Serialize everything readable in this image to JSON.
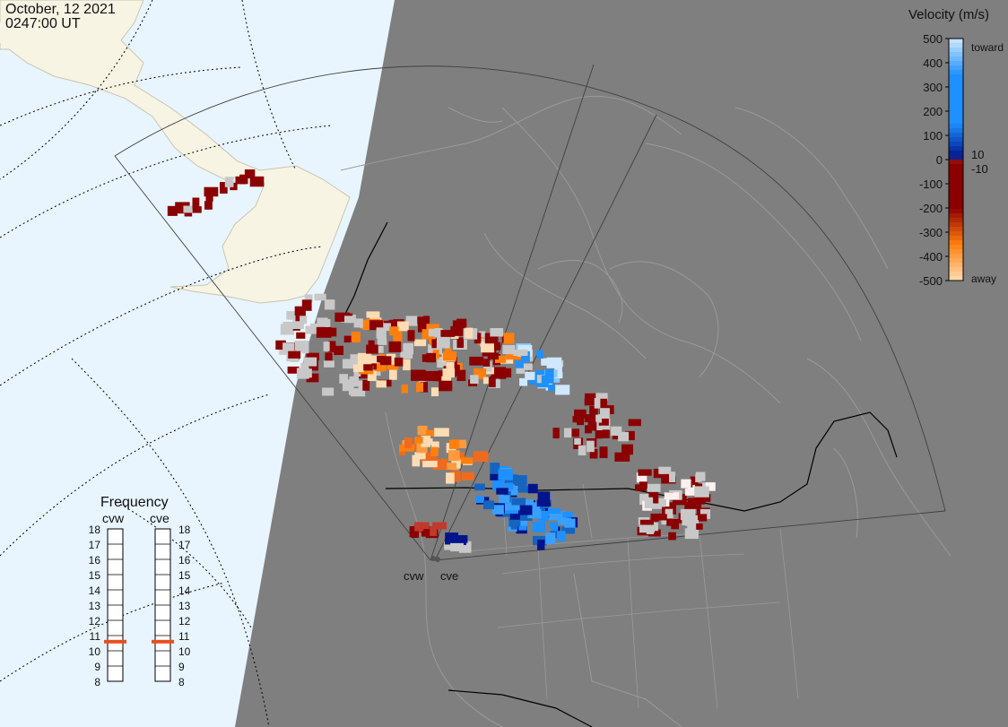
{
  "header": {
    "date": "October, 12 2021",
    "time": "0247:00 UT"
  },
  "velocity_scale": {
    "title": "Velocity (m/s)",
    "ticks": [
      "500",
      "400",
      "300",
      "200",
      "100",
      "0",
      "-100",
      "-200",
      "-300",
      "-400",
      "-500"
    ],
    "inner_labels": [
      "10",
      "-10"
    ],
    "end_labels": {
      "top": "toward",
      "bottom": "away"
    },
    "colors": {
      "toward_light": "#cfe8ff",
      "toward_mid": "#1e90ff",
      "toward_dark": "#00148c",
      "zero": "#c8c8c8",
      "away_dark": "#8b0000",
      "away_mid": "#ff7f0e",
      "away_light": "#ffdcb4"
    }
  },
  "frequency": {
    "title": "Frequency",
    "radars": [
      {
        "name": "cvw",
        "freq_mhz": 10.6
      },
      {
        "name": "cve",
        "freq_mhz": 10.6
      }
    ],
    "ticks": [
      "18",
      "17",
      "16",
      "15",
      "14",
      "13",
      "12",
      "11",
      "10",
      "9",
      "8"
    ],
    "indicator_color": "#e8501e"
  },
  "radar_sites": [
    {
      "name": "cvw"
    },
    {
      "name": "cve"
    }
  ],
  "map_colors": {
    "night": "#7f7f7f",
    "ocean_day": "#e8f5ff",
    "land_day": "#f7f4e4",
    "grid": "#000000",
    "coast_night": "#9a9a9a",
    "fov": "#404040"
  }
}
